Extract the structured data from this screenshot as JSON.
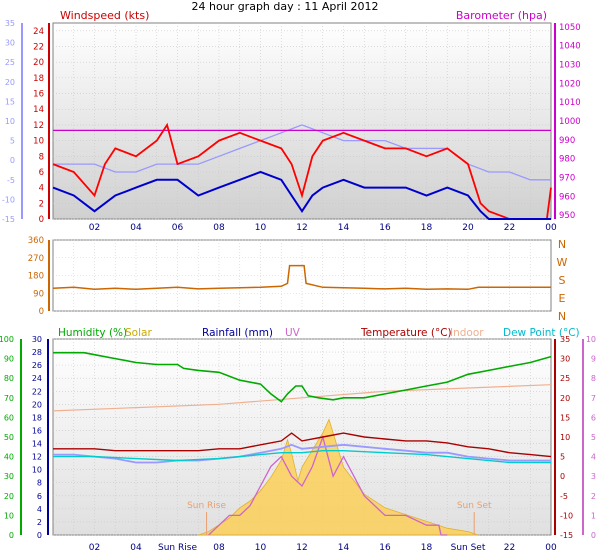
{
  "title": "24 hour graph day : 11 April 2012",
  "colors": {
    "windspeed": "#ff0000",
    "windspeed_avg": "#0000cc",
    "barometer": "#cc00cc",
    "temp_axis_left": "#9999ff",
    "wind_dir": "#cc6600",
    "humidity": "#00aa00",
    "solar": "#ffcc44",
    "rainfall": "#000099",
    "uv": "#cc66cc",
    "temperature": "#aa0000",
    "indoor": "#f0b090",
    "dew_point": "#00cccc",
    "plot_bg": "#e8e8e8"
  },
  "chart_data": [
    {
      "type": "line",
      "name": "wind-barometer",
      "labels": {
        "left": "Windspeed (kts)",
        "right": "Barometer (hpa)"
      },
      "x_ticks": [
        "02",
        "04",
        "06",
        "08",
        "10",
        "12",
        "14",
        "16",
        "18",
        "20",
        "22",
        "00"
      ],
      "y_left_ticks": [
        0,
        2,
        4,
        6,
        8,
        10,
        12,
        14,
        16,
        18,
        20,
        22,
        24
      ],
      "y_left_ylim": [
        0,
        25
      ],
      "y_outer_ticks": [
        -15,
        -10,
        -5,
        0,
        5,
        10,
        15,
        20,
        25,
        30,
        35
      ],
      "y_outer_ylim": [
        -15,
        35
      ],
      "y_right_ticks": [
        950,
        960,
        970,
        980,
        990,
        1000,
        1010,
        1020,
        1030,
        1040,
        1050
      ],
      "y_right_ylim": [
        948,
        1052
      ],
      "x_range_hours": [
        0,
        24
      ],
      "series": [
        {
          "key": "windspeed",
          "x": [
            0.0,
            1.0,
            2.0,
            2.5,
            3.0,
            4.0,
            5.0,
            5.5,
            6.0,
            7.0,
            8.0,
            9.0,
            10.0,
            11.0,
            11.5,
            12.0,
            12.5,
            13.0,
            14.0,
            15.0,
            16.0,
            17.0,
            18.0,
            19.0,
            20.0,
            20.6,
            21.0,
            22.0,
            23.0,
            23.8,
            24.0
          ],
          "y": [
            7,
            6,
            3,
            7,
            9,
            8,
            10,
            12,
            7,
            8,
            10,
            11,
            10,
            9,
            7,
            3,
            8,
            10,
            11,
            10,
            9,
            9,
            8,
            9,
            7,
            2,
            1,
            0,
            0,
            0,
            4
          ]
        },
        {
          "key": "windspeed_avg",
          "x": [
            0.0,
            1.0,
            2.0,
            3.0,
            4.0,
            5.0,
            6.0,
            7.0,
            8.0,
            9.0,
            10.0,
            11.0,
            11.5,
            12.0,
            12.5,
            13.0,
            14.0,
            15.0,
            16.0,
            17.0,
            18.0,
            19.0,
            20.0,
            20.6,
            21.0,
            22.0,
            23.0,
            24.0
          ],
          "y": [
            4,
            3,
            1,
            3,
            4,
            5,
            5,
            3,
            4,
            5,
            6,
            5,
            3,
            1,
            3,
            4,
            5,
            4,
            4,
            4,
            3,
            4,
            3,
            1,
            0,
            0,
            0,
            0
          ]
        },
        {
          "key": "barometer",
          "x": [
            0,
            4,
            8,
            12,
            16,
            20,
            24
          ],
          "y": [
            995,
            995,
            995,
            995,
            995,
            995,
            995
          ]
        },
        {
          "key": "temp_axis_left",
          "x": [
            0.0,
            1.0,
            2.0,
            3.0,
            4.0,
            5.0,
            6.0,
            7.0,
            8.0,
            9.0,
            10.0,
            11.0,
            12.0,
            13.0,
            14.0,
            15.0,
            16.0,
            17.0,
            18.0,
            19.0,
            20.0,
            21.0,
            22.0,
            23.0,
            24.0
          ],
          "y": [
            7,
            7,
            7,
            6,
            6,
            7,
            7,
            7,
            8,
            9,
            10,
            11,
            12,
            11,
            10,
            10,
            10,
            9,
            9,
            9,
            7,
            6,
            6,
            5,
            5
          ]
        }
      ]
    },
    {
      "type": "line",
      "name": "wind-direction",
      "labels": [
        "N",
        "W",
        "S",
        "E",
        "N"
      ],
      "y_ticks": [
        0,
        90,
        180,
        270,
        360
      ],
      "ylim": [
        0,
        360
      ],
      "series": [
        {
          "key": "wind_dir",
          "x": [
            0.0,
            1.0,
            2.0,
            3.0,
            4.0,
            5.0,
            6.0,
            7.0,
            8.0,
            9.0,
            10.0,
            11.0,
            11.3,
            11.4,
            12.1,
            12.2,
            13.0,
            14.0,
            15.0,
            16.0,
            17.0,
            18.0,
            19.0,
            20.0,
            20.5,
            22.0,
            24.0
          ],
          "y": [
            115,
            120,
            110,
            115,
            110,
            115,
            120,
            112,
            115,
            118,
            120,
            125,
            140,
            230,
            230,
            140,
            120,
            118,
            115,
            112,
            115,
            110,
            112,
            110,
            120,
            120,
            120
          ]
        }
      ]
    },
    {
      "type": "line",
      "name": "humidity-temperature",
      "labels": {
        "humidity": "Humidity (%)",
        "solar": "Solar",
        "rainfall": "Rainfall (mm)",
        "uv": "UV",
        "temperature": "Temperature (°C)",
        "indoor": "Indoor",
        "dew_point": "Dew Point (°C)"
      },
      "x_ticks": [
        "02",
        "04",
        "Sun Rise",
        "08",
        "10",
        "12",
        "14",
        "16",
        "18",
        "Sun Set",
        "22",
        "00"
      ],
      "y_left_outer_ticks": [
        0,
        10,
        20,
        30,
        40,
        50,
        60,
        70,
        80,
        90,
        100
      ],
      "y_left_outer_ylim": [
        0,
        100
      ],
      "y_left_inner_ticks": [
        0,
        2,
        4,
        6,
        8,
        10,
        12,
        14,
        16,
        18,
        20,
        22,
        24,
        26,
        28,
        30
      ],
      "y_left_inner_ylim": [
        0,
        30
      ],
      "y_right_inner_ticks": [
        -15,
        -10,
        -5,
        0,
        5,
        10,
        15,
        20,
        25,
        30,
        35
      ],
      "y_right_inner_ylim": [
        -15,
        35
      ],
      "y_right_outer_ticks": [
        0,
        1,
        2,
        3,
        4,
        5,
        6,
        7,
        8,
        9,
        10
      ],
      "y_right_outer_ylim": [
        0,
        10
      ],
      "markers": [
        {
          "label": "Sun Rise",
          "hour": 7.4
        },
        {
          "label": "Sun Set",
          "hour": 20.3
        }
      ],
      "series": [
        {
          "key": "humidity",
          "x": [
            0.0,
            1.5,
            2.0,
            3.0,
            4.0,
            5.0,
            6.0,
            6.3,
            7.0,
            8.0,
            9.0,
            10.0,
            10.5,
            11.0,
            11.3,
            11.7,
            12.0,
            12.3,
            12.8,
            13.5,
            14.0,
            15.0,
            16.0,
            17.0,
            18.0,
            19.0,
            20.0,
            21.0,
            22.0,
            23.0,
            24.0
          ],
          "y": [
            93,
            93,
            92,
            90,
            88,
            87,
            87,
            85,
            84,
            83,
            79,
            77,
            72,
            68,
            72,
            76,
            76,
            71,
            70,
            69,
            70,
            70,
            72,
            74,
            76,
            78,
            82,
            84,
            86,
            88,
            91
          ]
        },
        {
          "key": "temperature",
          "x": [
            0.0,
            1.0,
            2.0,
            3.0,
            4.0,
            5.0,
            6.0,
            7.0,
            8.0,
            9.0,
            10.0,
            11.0,
            11.5,
            12.0,
            13.0,
            14.0,
            15.0,
            16.0,
            17.0,
            18.0,
            19.0,
            20.0,
            21.0,
            22.0,
            23.0,
            24.0
          ],
          "y": [
            7,
            7,
            7,
            6.5,
            6.5,
            6.5,
            6.5,
            6.5,
            7,
            7,
            8,
            9,
            11,
            9,
            10,
            11,
            10,
            9.5,
            9,
            9,
            8.5,
            7.5,
            7,
            6,
            5.5,
            5
          ]
        },
        {
          "key": "dew_point",
          "x": [
            0.0,
            2.0,
            4.0,
            6.0,
            8.0,
            10.0,
            11.0,
            12.0,
            13.0,
            14.0,
            16.0,
            18.0,
            20.0,
            22.0,
            24.0
          ],
          "y": [
            5,
            5,
            4.5,
            4,
            4.5,
            5.5,
            6,
            6,
            6.5,
            6.5,
            6,
            5.5,
            4.5,
            3.5,
            3.5
          ]
        },
        {
          "key": "temp_axis_left",
          "x": [
            0.0,
            1.0,
            2.0,
            3.0,
            4.0,
            5.0,
            6.0,
            7.0,
            8.0,
            9.0,
            10.0,
            11.0,
            11.5,
            12.0,
            13.0,
            14.0,
            15.0,
            16.0,
            17.0,
            18.0,
            19.0,
            20.0,
            21.0,
            22.0,
            23.0,
            24.0
          ],
          "y": [
            5.5,
            5.5,
            5,
            4.5,
            3.5,
            3.5,
            4,
            4,
            4.5,
            5,
            6,
            7,
            8,
            7,
            7.5,
            8,
            7.5,
            7,
            6.5,
            6,
            6,
            5,
            4.5,
            4,
            4,
            4
          ]
        },
        {
          "key": "indoor",
          "x": [
            0,
            4,
            8,
            12,
            16,
            20,
            24
          ],
          "y": [
            19,
            19.5,
            20,
            21,
            22,
            22.5,
            23
          ]
        },
        {
          "key": "solar",
          "x": [
            7.0,
            7.5,
            8.0,
            8.5,
            9.0,
            9.5,
            10.0,
            10.5,
            11.0,
            11.3,
            11.5,
            11.8,
            12.0,
            12.5,
            13.0,
            13.3,
            13.6,
            14.0,
            14.5,
            15.0,
            16.0,
            17.0,
            18.0,
            19.0,
            20.0,
            20.5
          ],
          "y": [
            0,
            1,
            3,
            5,
            8,
            10,
            13,
            17,
            22,
            28,
            24,
            16,
            20,
            25,
            30,
            34,
            28,
            20,
            16,
            12,
            8,
            6,
            4,
            2,
            1,
            0
          ]
        },
        {
          "key": "uv",
          "x": [
            7.5,
            8.0,
            8.5,
            9.0,
            9.5,
            10.0,
            10.5,
            11.0,
            11.5,
            12.0,
            12.5,
            13.0,
            13.5,
            14.0,
            14.5,
            15.0,
            16.0,
            17.0,
            18.0,
            18.6,
            18.7,
            19.0
          ],
          "y": [
            0,
            0.5,
            1,
            1,
            1.5,
            2.5,
            3.5,
            4,
            3,
            2.5,
            3.5,
            5,
            3,
            4,
            3,
            2,
            1,
            1,
            0.5,
            0.5,
            0,
            0
          ]
        }
      ]
    }
  ]
}
